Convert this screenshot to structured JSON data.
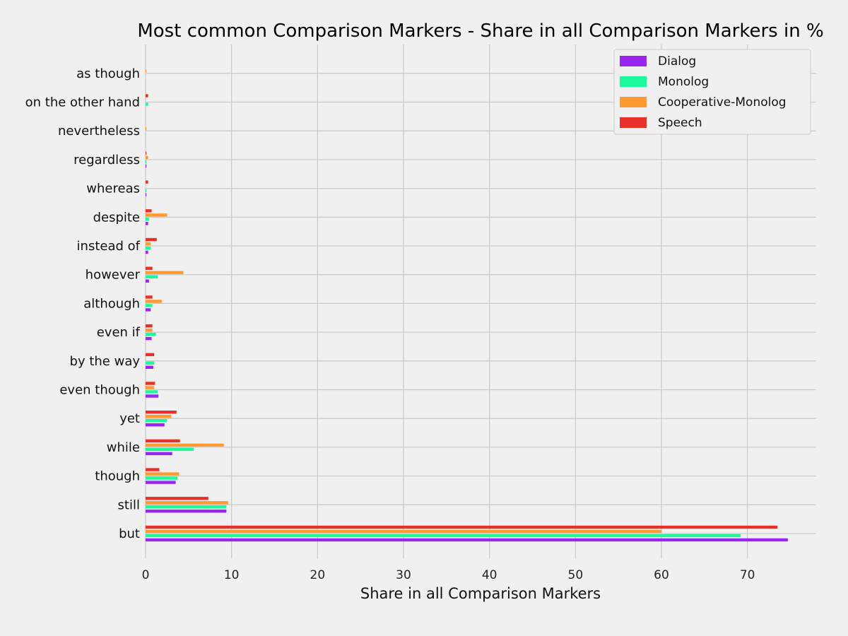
{
  "chart_data": {
    "type": "bar",
    "orientation": "horizontal",
    "title": "Most common Comparison Markers - Share in all Comparison Markers in %",
    "xlabel": "Share in all Comparison Markers",
    "ylabel": "",
    "xlim": [
      0,
      78
    ],
    "xticks": [
      "0",
      "10",
      "20",
      "30",
      "40",
      "50",
      "60",
      "70"
    ],
    "grid": true,
    "legend_position": "top-right",
    "categories": [
      "but",
      "still",
      "though",
      "while",
      "yet",
      "even though",
      "by the way",
      "even if",
      "although",
      "however",
      "instead of",
      "despite",
      "whereas",
      "regardless",
      "nevertheless",
      "on the other hand",
      "as though"
    ],
    "series": [
      {
        "name": "Dialog",
        "color": "#9b25f0",
        "values": [
          74.7,
          9.4,
          3.5,
          3.1,
          2.2,
          1.5,
          0.9,
          0.7,
          0.6,
          0.4,
          0.3,
          0.3,
          0.1,
          0.1,
          0.0,
          0.0,
          0.0
        ]
      },
      {
        "name": "Monolog",
        "color": "#1ef99b",
        "values": [
          69.2,
          9.4,
          3.7,
          5.6,
          2.5,
          1.4,
          1.0,
          1.2,
          0.8,
          1.4,
          0.6,
          0.4,
          0.1,
          0.1,
          0.0,
          0.3,
          0.0
        ]
      },
      {
        "name": "Cooperative-Monolog",
        "color": "#ff9a30",
        "values": [
          60.0,
          9.6,
          3.9,
          9.1,
          3.0,
          1.0,
          0.0,
          0.8,
          1.9,
          4.4,
          0.6,
          2.5,
          0.0,
          0.3,
          0.1,
          0.0,
          0.1
        ]
      },
      {
        "name": "Speech",
        "color": "#e8302a",
        "values": [
          73.5,
          7.3,
          1.6,
          4.0,
          3.6,
          1.1,
          1.0,
          0.8,
          0.8,
          0.8,
          1.3,
          0.7,
          0.3,
          0.1,
          0.0,
          0.3,
          0.0
        ]
      }
    ]
  }
}
